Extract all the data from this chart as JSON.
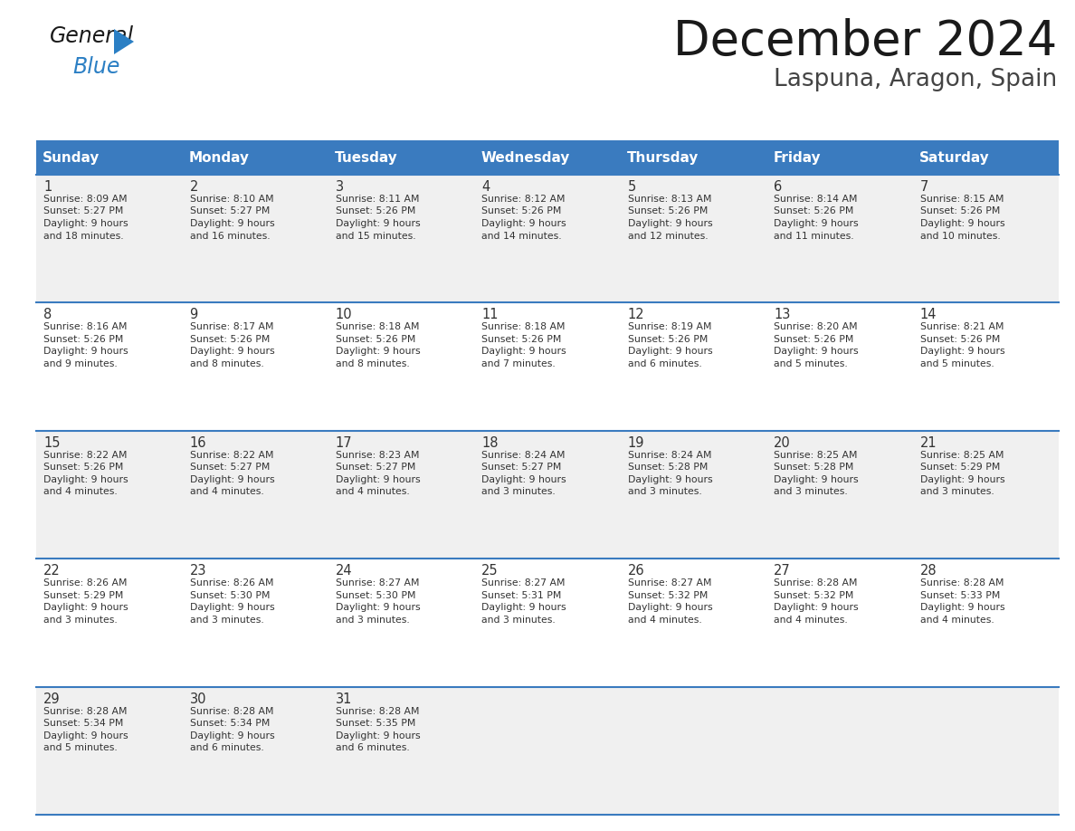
{
  "title": "December 2024",
  "subtitle": "Laspuna, Aragon, Spain",
  "header_bg": "#3a7bbf",
  "header_text_color": "#ffffff",
  "days_of_week": [
    "Sunday",
    "Monday",
    "Tuesday",
    "Wednesday",
    "Thursday",
    "Friday",
    "Saturday"
  ],
  "weeks": [
    [
      {
        "day": 1,
        "sunrise": "8:09 AM",
        "sunset": "5:27 PM",
        "daylight_hours": 9,
        "daylight_minutes": 18
      },
      {
        "day": 2,
        "sunrise": "8:10 AM",
        "sunset": "5:27 PM",
        "daylight_hours": 9,
        "daylight_minutes": 16
      },
      {
        "day": 3,
        "sunrise": "8:11 AM",
        "sunset": "5:26 PM",
        "daylight_hours": 9,
        "daylight_minutes": 15
      },
      {
        "day": 4,
        "sunrise": "8:12 AM",
        "sunset": "5:26 PM",
        "daylight_hours": 9,
        "daylight_minutes": 14
      },
      {
        "day": 5,
        "sunrise": "8:13 AM",
        "sunset": "5:26 PM",
        "daylight_hours": 9,
        "daylight_minutes": 12
      },
      {
        "day": 6,
        "sunrise": "8:14 AM",
        "sunset": "5:26 PM",
        "daylight_hours": 9,
        "daylight_minutes": 11
      },
      {
        "day": 7,
        "sunrise": "8:15 AM",
        "sunset": "5:26 PM",
        "daylight_hours": 9,
        "daylight_minutes": 10
      }
    ],
    [
      {
        "day": 8,
        "sunrise": "8:16 AM",
        "sunset": "5:26 PM",
        "daylight_hours": 9,
        "daylight_minutes": 9
      },
      {
        "day": 9,
        "sunrise": "8:17 AM",
        "sunset": "5:26 PM",
        "daylight_hours": 9,
        "daylight_minutes": 8
      },
      {
        "day": 10,
        "sunrise": "8:18 AM",
        "sunset": "5:26 PM",
        "daylight_hours": 9,
        "daylight_minutes": 8
      },
      {
        "day": 11,
        "sunrise": "8:18 AM",
        "sunset": "5:26 PM",
        "daylight_hours": 9,
        "daylight_minutes": 7
      },
      {
        "day": 12,
        "sunrise": "8:19 AM",
        "sunset": "5:26 PM",
        "daylight_hours": 9,
        "daylight_minutes": 6
      },
      {
        "day": 13,
        "sunrise": "8:20 AM",
        "sunset": "5:26 PM",
        "daylight_hours": 9,
        "daylight_minutes": 5
      },
      {
        "day": 14,
        "sunrise": "8:21 AM",
        "sunset": "5:26 PM",
        "daylight_hours": 9,
        "daylight_minutes": 5
      }
    ],
    [
      {
        "day": 15,
        "sunrise": "8:22 AM",
        "sunset": "5:26 PM",
        "daylight_hours": 9,
        "daylight_minutes": 4
      },
      {
        "day": 16,
        "sunrise": "8:22 AM",
        "sunset": "5:27 PM",
        "daylight_hours": 9,
        "daylight_minutes": 4
      },
      {
        "day": 17,
        "sunrise": "8:23 AM",
        "sunset": "5:27 PM",
        "daylight_hours": 9,
        "daylight_minutes": 4
      },
      {
        "day": 18,
        "sunrise": "8:24 AM",
        "sunset": "5:27 PM",
        "daylight_hours": 9,
        "daylight_minutes": 3
      },
      {
        "day": 19,
        "sunrise": "8:24 AM",
        "sunset": "5:28 PM",
        "daylight_hours": 9,
        "daylight_minutes": 3
      },
      {
        "day": 20,
        "sunrise": "8:25 AM",
        "sunset": "5:28 PM",
        "daylight_hours": 9,
        "daylight_minutes": 3
      },
      {
        "day": 21,
        "sunrise": "8:25 AM",
        "sunset": "5:29 PM",
        "daylight_hours": 9,
        "daylight_minutes": 3
      }
    ],
    [
      {
        "day": 22,
        "sunrise": "8:26 AM",
        "sunset": "5:29 PM",
        "daylight_hours": 9,
        "daylight_minutes": 3
      },
      {
        "day": 23,
        "sunrise": "8:26 AM",
        "sunset": "5:30 PM",
        "daylight_hours": 9,
        "daylight_minutes": 3
      },
      {
        "day": 24,
        "sunrise": "8:27 AM",
        "sunset": "5:30 PM",
        "daylight_hours": 9,
        "daylight_minutes": 3
      },
      {
        "day": 25,
        "sunrise": "8:27 AM",
        "sunset": "5:31 PM",
        "daylight_hours": 9,
        "daylight_minutes": 3
      },
      {
        "day": 26,
        "sunrise": "8:27 AM",
        "sunset": "5:32 PM",
        "daylight_hours": 9,
        "daylight_minutes": 4
      },
      {
        "day": 27,
        "sunrise": "8:28 AM",
        "sunset": "5:32 PM",
        "daylight_hours": 9,
        "daylight_minutes": 4
      },
      {
        "day": 28,
        "sunrise": "8:28 AM",
        "sunset": "5:33 PM",
        "daylight_hours": 9,
        "daylight_minutes": 4
      }
    ],
    [
      {
        "day": 29,
        "sunrise": "8:28 AM",
        "sunset": "5:34 PM",
        "daylight_hours": 9,
        "daylight_minutes": 5
      },
      {
        "day": 30,
        "sunrise": "8:28 AM",
        "sunset": "5:34 PM",
        "daylight_hours": 9,
        "daylight_minutes": 6
      },
      {
        "day": 31,
        "sunrise": "8:28 AM",
        "sunset": "5:35 PM",
        "daylight_hours": 9,
        "daylight_minutes": 6
      },
      null,
      null,
      null,
      null
    ]
  ],
  "cell_bg_odd": "#f0f0f0",
  "cell_bg_even": "#ffffff",
  "border_color": "#3a7bbf",
  "text_color": "#333333",
  "day_num_color": "#333333",
  "logo_general_color": "#1a1a1a",
  "logo_blue_color": "#2b7fc4",
  "fig_width": 11.88,
  "fig_height": 9.18,
  "dpi": 100
}
